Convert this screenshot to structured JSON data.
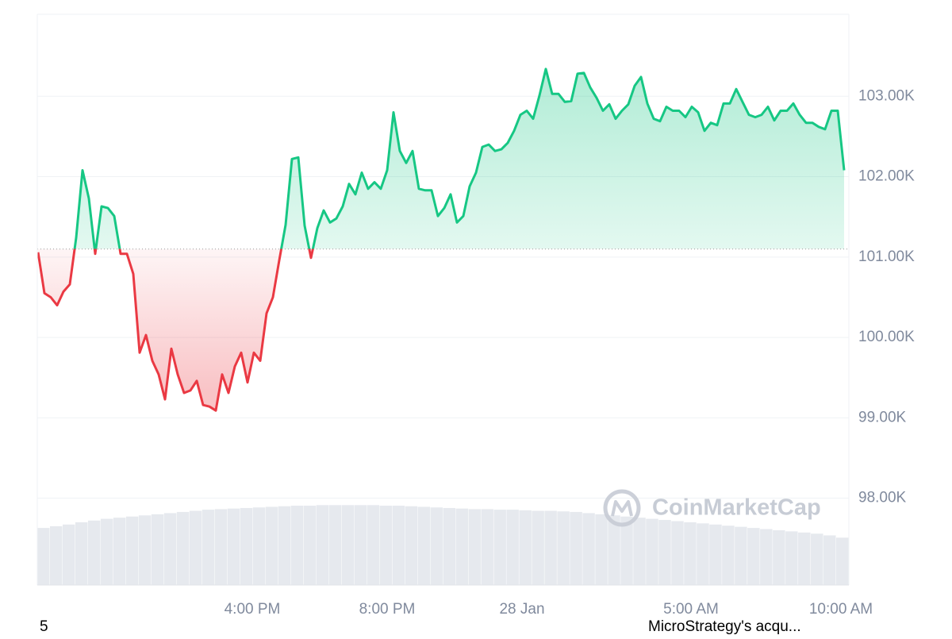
{
  "chart_data": {
    "type": "line",
    "values": [
      101060,
      100550,
      100500,
      100400,
      100570,
      100660,
      101240,
      102080,
      101730,
      101040,
      101630,
      101610,
      101510,
      101040,
      101040,
      100790,
      99810,
      100030,
      99710,
      99540,
      99230,
      99860,
      99540,
      99310,
      99340,
      99460,
      99160,
      99140,
      99090,
      99540,
      99310,
      99640,
      99810,
      99440,
      99810,
      99710,
      100300,
      100500,
      100960,
      101400,
      102220,
      102240,
      101390,
      100990,
      101360,
      101580,
      101430,
      101480,
      101630,
      101910,
      101780,
      102050,
      101850,
      101930,
      101850,
      102080,
      102800,
      102320,
      102170,
      102320,
      101850,
      101830,
      101830,
      101510,
      101610,
      101780,
      101430,
      101510,
      101880,
      102050,
      102370,
      102400,
      102320,
      102340,
      102420,
      102570,
      102770,
      102820,
      102720,
      103010,
      103340,
      103030,
      103030,
      102930,
      102940,
      103280,
      103290,
      103110,
      102980,
      102820,
      102900,
      102720,
      102820,
      102900,
      103130,
      103240,
      102910,
      102720,
      102690,
      102870,
      102820,
      102820,
      102740,
      102870,
      102800,
      102570,
      102670,
      102640,
      102910,
      102910,
      103090,
      102930,
      102770,
      102740,
      102770,
      102870,
      102700,
      102820,
      102820,
      102910,
      102770,
      102670,
      102670,
      102620,
      102590,
      102820,
      102820,
      102080
    ],
    "baseline": 101100,
    "color_up": "#16c784",
    "color_down": "#ea3943",
    "xlim": [
      0,
      127
    ],
    "xticks": [
      {
        "value": 33.75,
        "label": "4:00 PM"
      },
      {
        "value": 55,
        "label": "8:00 PM"
      },
      {
        "value": 76.25,
        "label": "28 Jan"
      },
      {
        "value": 102.875,
        "label": "5:00 AM"
      },
      {
        "value": 126.5,
        "label": "10:00 AM"
      }
    ],
    "ylim": [
      96920,
      104020
    ],
    "yticks": [
      {
        "value": 98000,
        "label": "98.00K"
      },
      {
        "value": 99000,
        "label": "99.00K"
      },
      {
        "value": 100000,
        "label": "100.00K"
      },
      {
        "value": 101000,
        "label": "101.00K"
      },
      {
        "value": 102000,
        "label": "102.00K"
      },
      {
        "value": 103000,
        "label": "103.00K"
      }
    ],
    "grid": true,
    "volume": {
      "ylim": [
        0,
        100
      ],
      "color": "#e6e9ee",
      "values": [
        10.0,
        10.3,
        10.6,
        11.0,
        11.3,
        11.6,
        11.8,
        12.0,
        12.2,
        12.4,
        12.6,
        12.8,
        13.0,
        13.2,
        13.3,
        13.4,
        13.5,
        13.6,
        13.7,
        13.8,
        13.9,
        13.9,
        14.0,
        14.0,
        14.0,
        14.0,
        14.0,
        13.9,
        13.9,
        13.8,
        13.7,
        13.6,
        13.5,
        13.4,
        13.3,
        13.3,
        13.2,
        13.2,
        13.1,
        13.0,
        13.0,
        12.9,
        12.8,
        12.6,
        12.4,
        12.2,
        12.0,
        11.8,
        11.6,
        11.4,
        11.2,
        11.0,
        10.8,
        10.6,
        10.4,
        10.2,
        10.0,
        9.8,
        9.6,
        9.4,
        9.2,
        9.0,
        8.7,
        8.3
      ]
    },
    "watermark": "CoinMarketCap",
    "annotations": [
      "5",
      "MicroStrategy's acqu..."
    ]
  }
}
